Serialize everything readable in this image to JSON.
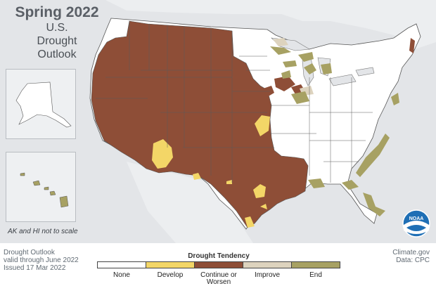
{
  "title": "Spring 2022",
  "subtitle_lines": [
    "U.S.",
    "Drought",
    "Outlook"
  ],
  "scale_note": "AK and HI not to scale",
  "footer": {
    "line1": "Drought Outlook",
    "line2": "valid through June 2022",
    "line3": "Issued 17 Mar 2022",
    "credit1": "Climate.gov",
    "credit2": "Data: CPC"
  },
  "legend": {
    "title": "Drought Tendency",
    "categories": [
      {
        "label": "None",
        "label2": "",
        "color": "#ffffff"
      },
      {
        "label": "Develop",
        "label2": "",
        "color": "#f3d667"
      },
      {
        "label": "Continue or",
        "label2": "Worsen",
        "color": "#8e4e37"
      },
      {
        "label": "Improve",
        "label2": "",
        "color": "#ddd3be"
      },
      {
        "label": "End",
        "label2": "",
        "color": "#a7a163"
      }
    ]
  },
  "colors": {
    "background": "#e3e5e8",
    "land": "#ffffff",
    "state_border": "#555555",
    "continue": "#8e4e37",
    "develop": "#f3d667",
    "improve": "#ddd3be",
    "end": "#a7a163",
    "noaa_blue": "#1f6fb5"
  },
  "logo": {
    "text": "NOAA",
    "icon": "noaa-logo-icon"
  }
}
